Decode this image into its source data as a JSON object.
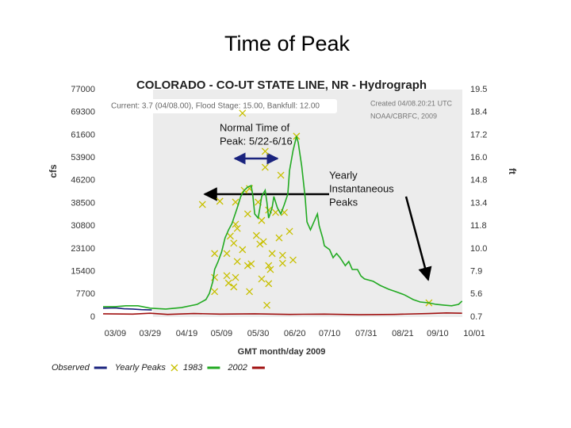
{
  "slide_title": "Time of Peak",
  "chart_data": {
    "type": "line",
    "title": "COLORADO - CO-UT STATE LINE, NR - Hydrograph",
    "subtitle": "Current: 3.7 (04/08.00), Flood Stage: 15.00, Bankfull: 12.00",
    "credits": [
      "Created 04/08.20:21 UTC",
      "NOAA/CBRFC, 2009"
    ],
    "xlabel": "GMT month/day 2009",
    "ylabel": "cfs",
    "y2label": "ft",
    "xlim": [
      -7,
      206
    ],
    "xticks": [
      {
        "value": 0,
        "label": "03/09"
      },
      {
        "value": 20,
        "label": "03/29"
      },
      {
        "value": 41,
        "label": "04/19"
      },
      {
        "value": 61,
        "label": "05/09"
      },
      {
        "value": 82,
        "label": "05/30"
      },
      {
        "value": 103,
        "label": "06/20"
      },
      {
        "value": 123,
        "label": "07/10"
      },
      {
        "value": 144,
        "label": "07/31"
      },
      {
        "value": 165,
        "label": "08/21"
      },
      {
        "value": 185,
        "label": "09/10"
      },
      {
        "value": 206,
        "label": "10/01"
      }
    ],
    "ylim": [
      0,
      77000
    ],
    "yticks": [
      0,
      7700,
      15400,
      23100,
      30800,
      38500,
      46200,
      53900,
      61600,
      69300,
      77000
    ],
    "y2tick_labels": [
      "0.7",
      "5.6",
      "7.9",
      "10.0",
      "11.8",
      "13.4",
      "14.8",
      "16.0",
      "17.2",
      "18.4",
      "19.5"
    ],
    "grid": false,
    "series": [
      {
        "name": "Observed",
        "type": "line",
        "color": "#1a237e",
        "x": [
          -7,
          0,
          5,
          10,
          15,
          21
        ],
        "values": [
          3000,
          3100,
          2800,
          2700,
          2500,
          2400
        ]
      },
      {
        "name": "Yearly Peaks",
        "type": "scatter",
        "color": "#c8c000",
        "x": [
          73,
          104,
          86,
          86,
          95,
          77,
          74,
          50,
          60,
          69,
          82,
          76,
          88,
          97,
          92,
          84,
          69,
          70,
          66,
          100,
          81,
          94,
          68,
          83,
          85,
          73,
          57,
          64,
          90,
          96,
          102,
          70,
          78,
          76,
          88,
          96,
          89,
          57,
          64,
          69,
          65,
          84,
          88,
          68,
          57,
          77,
          87,
          180
        ],
        "values": [
          69000,
          61200,
          56100,
          50700,
          48000,
          43500,
          42900,
          38100,
          39200,
          38900,
          38900,
          34900,
          36200,
          35400,
          35400,
          32700,
          31400,
          30000,
          27400,
          29000,
          27600,
          26800,
          25000,
          24700,
          25500,
          22800,
          21500,
          21500,
          21500,
          20900,
          19300,
          18800,
          18000,
          17400,
          17400,
          18200,
          16100,
          13400,
          14000,
          13400,
          11500,
          12900,
          11300,
          10200,
          8600,
          8600,
          4000,
          4800
        ]
      },
      {
        "name": "1983",
        "type": "line",
        "color": "#22aa22",
        "x": [
          -7,
          0,
          6,
          13,
          20,
          29,
          38,
          47,
          52,
          54,
          56,
          57,
          59,
          61,
          63,
          65,
          67,
          68,
          70,
          72,
          74,
          76,
          78,
          79,
          80,
          82,
          83,
          84,
          86,
          87,
          88,
          90,
          91,
          93,
          95,
          97,
          99,
          100,
          102,
          104,
          105,
          107,
          109,
          110,
          112,
          114,
          116,
          117,
          119,
          120,
          123,
          125,
          127,
          129,
          132,
          134,
          136,
          139,
          141,
          143,
          148,
          152,
          157,
          161,
          166,
          171,
          175,
          180,
          184,
          189,
          193,
          197,
          199
        ],
        "values": [
          3500,
          3500,
          3800,
          3800,
          3000,
          2700,
          3200,
          4300,
          5900,
          8000,
          12100,
          16100,
          18800,
          22000,
          26800,
          29500,
          31700,
          33500,
          37000,
          40800,
          42900,
          44000,
          44500,
          40800,
          34900,
          33500,
          37000,
          40800,
          42900,
          38900,
          33500,
          37000,
          40800,
          37000,
          34900,
          38100,
          41600,
          49600,
          56300,
          61200,
          59000,
          51000,
          40200,
          32200,
          29500,
          32200,
          34900,
          30900,
          26800,
          24100,
          22800,
          20100,
          21500,
          20100,
          17400,
          18800,
          16100,
          16100,
          13900,
          12900,
          12100,
          10700,
          9400,
          8600,
          7500,
          5900,
          5100,
          4800,
          4300,
          4000,
          3800,
          4300,
          5400
        ]
      },
      {
        "name": "2002",
        "type": "line",
        "color": "#a01010",
        "x": [
          -7,
          10,
          20,
          30,
          45,
          60,
          80,
          100,
          120,
          140,
          160,
          180,
          190,
          199
        ],
        "values": [
          1100,
          1000,
          1300,
          900,
          1200,
          1000,
          1100,
          900,
          1000,
          800,
          900,
          1200,
          1400,
          1300
        ]
      }
    ],
    "annotations": [
      [
        "Normal Time of",
        "Peak: 5/22-6/16"
      ],
      [
        "Yearly",
        "Instantaneous",
        "Peaks"
      ]
    ]
  }
}
